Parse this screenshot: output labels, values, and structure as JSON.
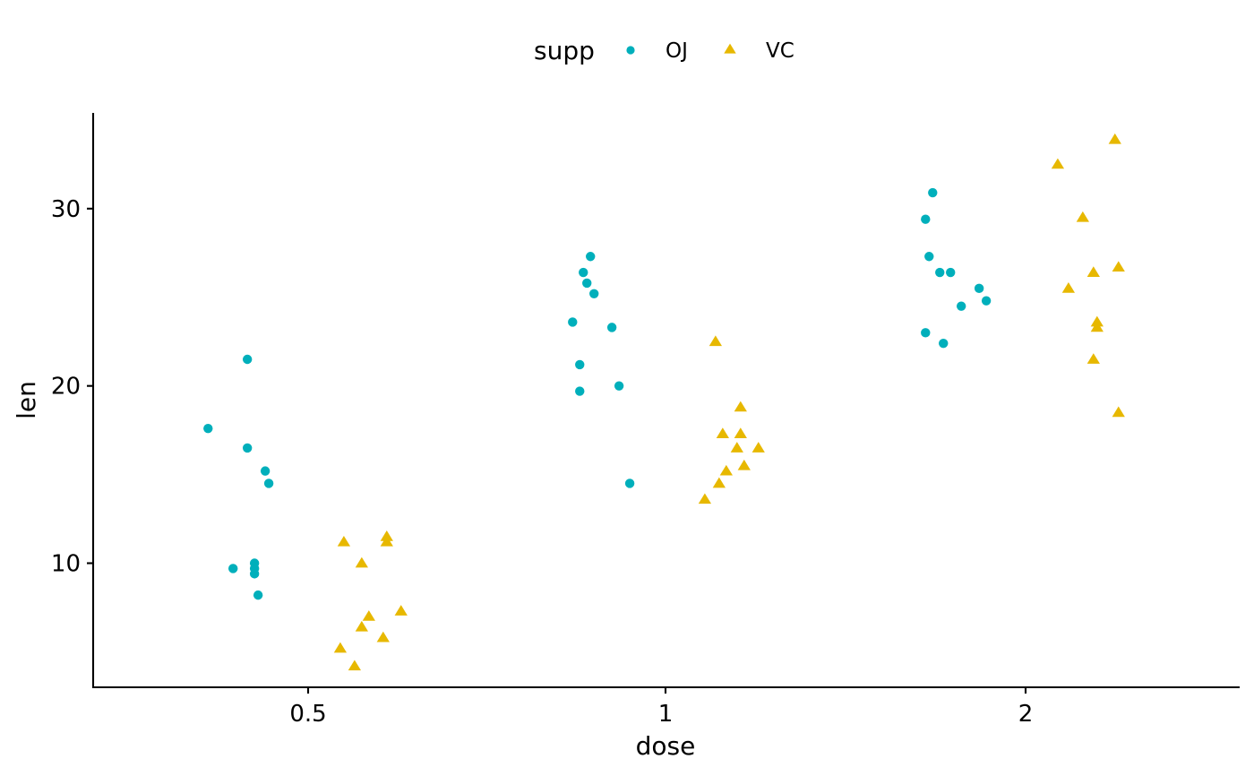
{
  "chart_data": {
    "type": "scatter",
    "title": "",
    "xlabel": "dose",
    "ylabel": "len",
    "x_type": "categorical",
    "categories": [
      "0.5",
      "1",
      "2"
    ],
    "ylim": [
      3.0,
      35.4
    ],
    "yticks": [
      10,
      20,
      30
    ],
    "grid": false,
    "legend": {
      "title": "supp",
      "position": "top",
      "entries": [
        {
          "label": "OJ",
          "shape": "circle",
          "color": "#00AFBB"
        },
        {
          "label": "VC",
          "shape": "triangle",
          "color": "#E7B800"
        }
      ]
    },
    "series": [
      {
        "name": "OJ",
        "color": "#00AFBB",
        "shape": "circle",
        "points": [
          {
            "x": "0.5",
            "offset": -0.28,
            "y": 17.6
          },
          {
            "x": "0.5",
            "offset": -0.17,
            "y": 21.5
          },
          {
            "x": "0.5",
            "offset": -0.17,
            "y": 16.5
          },
          {
            "x": "0.5",
            "offset": -0.12,
            "y": 15.2
          },
          {
            "x": "0.5",
            "offset": -0.11,
            "y": 14.5
          },
          {
            "x": "0.5",
            "offset": -0.21,
            "y": 9.7
          },
          {
            "x": "0.5",
            "offset": -0.15,
            "y": 10.0
          },
          {
            "x": "0.5",
            "offset": -0.15,
            "y": 9.7
          },
          {
            "x": "0.5",
            "offset": -0.15,
            "y": 9.4
          },
          {
            "x": "0.5",
            "offset": -0.14,
            "y": 8.2
          },
          {
            "x": "1",
            "offset": -0.26,
            "y": 23.6
          },
          {
            "x": "1",
            "offset": -0.23,
            "y": 26.4
          },
          {
            "x": "1",
            "offset": -0.21,
            "y": 27.3
          },
          {
            "x": "1",
            "offset": -0.22,
            "y": 25.8
          },
          {
            "x": "1",
            "offset": -0.2,
            "y": 25.2
          },
          {
            "x": "1",
            "offset": -0.15,
            "y": 23.3
          },
          {
            "x": "1",
            "offset": -0.24,
            "y": 21.2
          },
          {
            "x": "1",
            "offset": -0.24,
            "y": 19.7
          },
          {
            "x": "1",
            "offset": -0.13,
            "y": 20.0
          },
          {
            "x": "1",
            "offset": -0.1,
            "y": 14.5
          },
          {
            "x": "2",
            "offset": -0.26,
            "y": 30.9
          },
          {
            "x": "2",
            "offset": -0.28,
            "y": 29.4
          },
          {
            "x": "2",
            "offset": -0.27,
            "y": 27.3
          },
          {
            "x": "2",
            "offset": -0.24,
            "y": 26.4
          },
          {
            "x": "2",
            "offset": -0.21,
            "y": 26.4
          },
          {
            "x": "2",
            "offset": -0.13,
            "y": 25.5
          },
          {
            "x": "2",
            "offset": -0.11,
            "y": 24.8
          },
          {
            "x": "2",
            "offset": -0.18,
            "y": 24.5
          },
          {
            "x": "2",
            "offset": -0.28,
            "y": 23.0
          },
          {
            "x": "2",
            "offset": -0.23,
            "y": 22.4
          }
        ]
      },
      {
        "name": "VC",
        "color": "#E7B800",
        "shape": "triangle",
        "points": [
          {
            "x": "0.5",
            "offset": 0.1,
            "y": 11.2
          },
          {
            "x": "0.5",
            "offset": 0.22,
            "y": 11.5
          },
          {
            "x": "0.5",
            "offset": 0.22,
            "y": 11.2
          },
          {
            "x": "0.5",
            "offset": 0.15,
            "y": 10.0
          },
          {
            "x": "0.5",
            "offset": 0.26,
            "y": 7.3
          },
          {
            "x": "0.5",
            "offset": 0.17,
            "y": 7.0
          },
          {
            "x": "0.5",
            "offset": 0.15,
            "y": 6.4
          },
          {
            "x": "0.5",
            "offset": 0.21,
            "y": 5.8
          },
          {
            "x": "0.5",
            "offset": 0.09,
            "y": 5.2
          },
          {
            "x": "0.5",
            "offset": 0.13,
            "y": 4.2
          },
          {
            "x": "1",
            "offset": 0.14,
            "y": 22.5
          },
          {
            "x": "1",
            "offset": 0.21,
            "y": 18.8
          },
          {
            "x": "1",
            "offset": 0.16,
            "y": 17.3
          },
          {
            "x": "1",
            "offset": 0.21,
            "y": 17.3
          },
          {
            "x": "1",
            "offset": 0.2,
            "y": 16.5
          },
          {
            "x": "1",
            "offset": 0.26,
            "y": 16.5
          },
          {
            "x": "1",
            "offset": 0.22,
            "y": 15.5
          },
          {
            "x": "1",
            "offset": 0.17,
            "y": 15.2
          },
          {
            "x": "1",
            "offset": 0.15,
            "y": 14.5
          },
          {
            "x": "1",
            "offset": 0.11,
            "y": 13.6
          },
          {
            "x": "2",
            "offset": 0.25,
            "y": 33.9
          },
          {
            "x": "2",
            "offset": 0.09,
            "y": 32.5
          },
          {
            "x": "2",
            "offset": 0.16,
            "y": 29.5
          },
          {
            "x": "2",
            "offset": 0.26,
            "y": 26.7
          },
          {
            "x": "2",
            "offset": 0.19,
            "y": 26.4
          },
          {
            "x": "2",
            "offset": 0.12,
            "y": 25.5
          },
          {
            "x": "2",
            "offset": 0.2,
            "y": 23.6
          },
          {
            "x": "2",
            "offset": 0.2,
            "y": 23.3
          },
          {
            "x": "2",
            "offset": 0.19,
            "y": 21.5
          },
          {
            "x": "2",
            "offset": 0.26,
            "y": 18.5
          }
        ]
      }
    ]
  }
}
